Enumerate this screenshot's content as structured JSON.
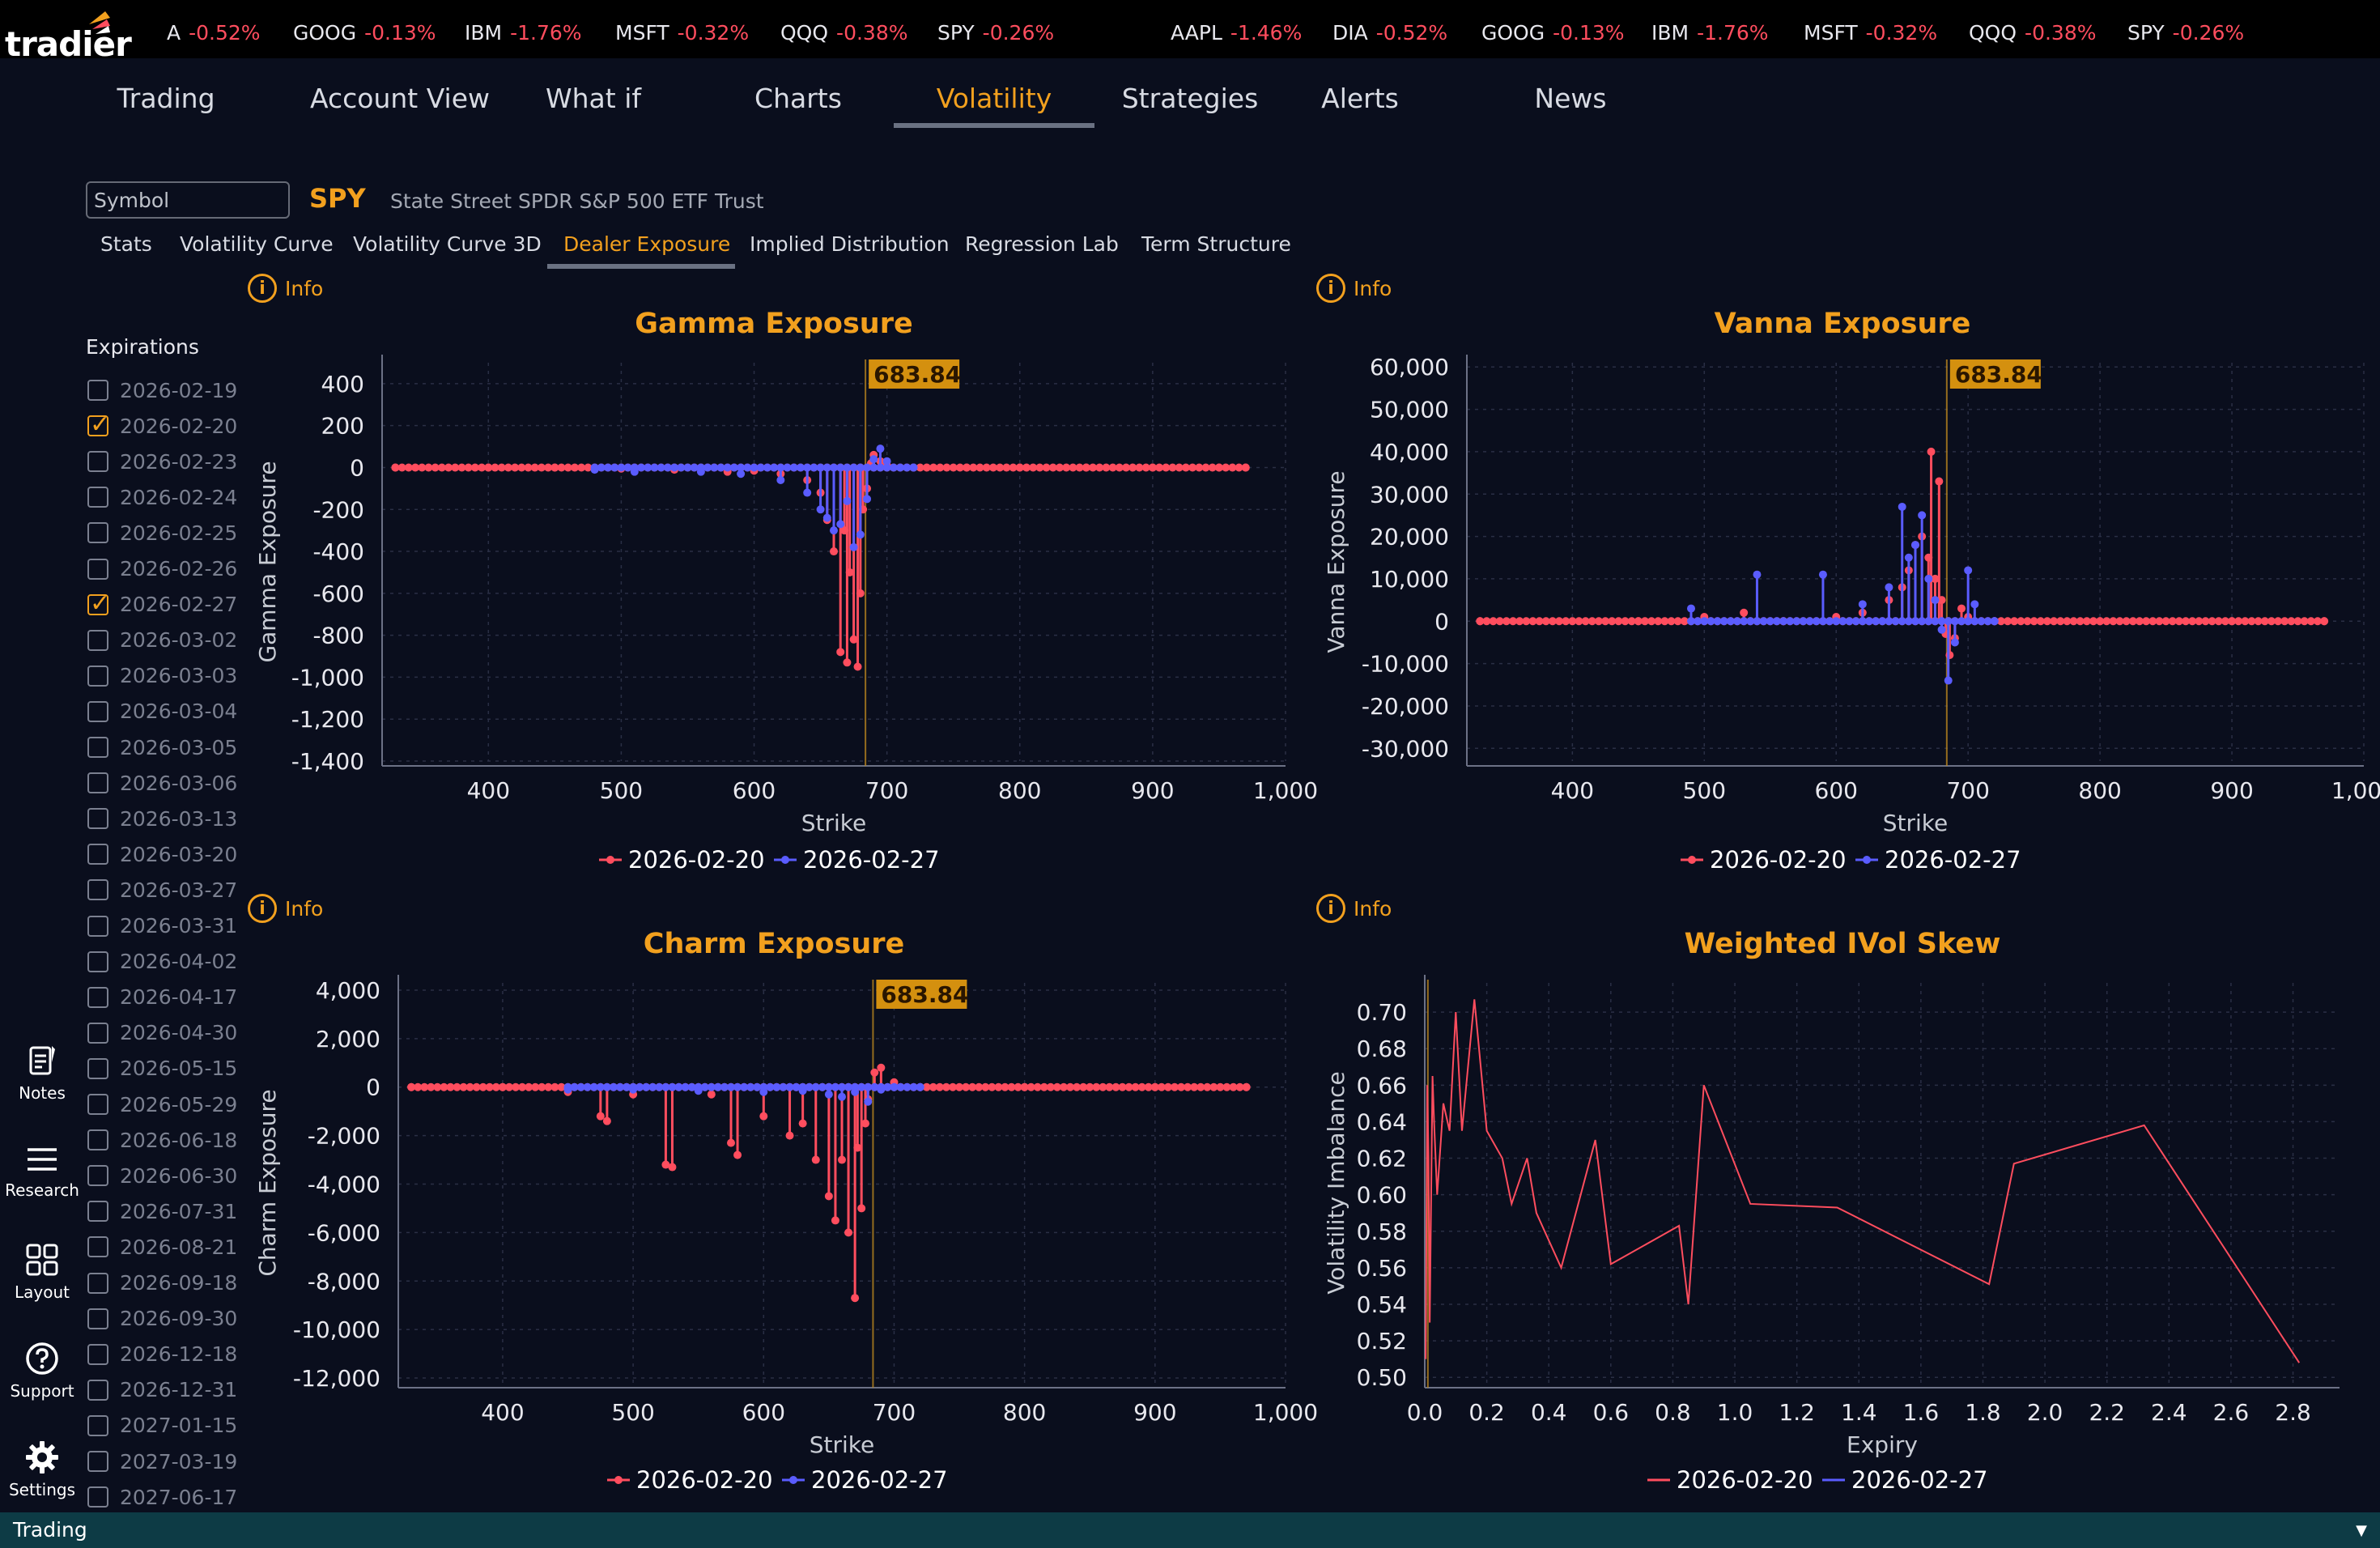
{
  "brand": {
    "logo_text": "tradier"
  },
  "tickers": [
    {
      "sym": "A",
      "chg": "-0.52%"
    },
    {
      "sym": "GOOG",
      "chg": "-0.13%"
    },
    {
      "sym": "IBM",
      "chg": "-1.76%"
    },
    {
      "sym": "MSFT",
      "chg": "-0.32%"
    },
    {
      "sym": "QQQ",
      "chg": "-0.38%"
    },
    {
      "sym": "SPY",
      "chg": "-0.26%"
    },
    {
      "sym": "AAPL",
      "chg": "-1.46%"
    },
    {
      "sym": "DIA",
      "chg": "-0.52%"
    },
    {
      "sym": "GOOG",
      "chg": "-0.13%"
    },
    {
      "sym": "IBM",
      "chg": "-1.76%"
    },
    {
      "sym": "MSFT",
      "chg": "-0.32%"
    },
    {
      "sym": "QQQ",
      "chg": "-0.38%"
    },
    {
      "sym": "SPY",
      "chg": "-0.26%"
    }
  ],
  "main_nav": [
    "Trading",
    "Account View",
    "What if",
    "Charts",
    "Volatility",
    "Strategies",
    "Alerts",
    "News"
  ],
  "main_nav_active": "Volatility",
  "symbol": {
    "placeholder": "Symbol",
    "ticker": "SPY",
    "name": "State Street SPDR S&P 500 ETF Trust"
  },
  "sub_nav": [
    "Stats",
    "Volatility Curve",
    "Volatility Curve 3D",
    "Dealer Exposure",
    "Implied Distribution",
    "Regression Lab",
    "Term Structure"
  ],
  "sub_nav_active": "Dealer Exposure",
  "expirations": {
    "title": "Expirations",
    "items": [
      {
        "date": "2026-02-19",
        "checked": false
      },
      {
        "date": "2026-02-20",
        "checked": true
      },
      {
        "date": "2026-02-23",
        "checked": false
      },
      {
        "date": "2026-02-24",
        "checked": false
      },
      {
        "date": "2026-02-25",
        "checked": false
      },
      {
        "date": "2026-02-26",
        "checked": false
      },
      {
        "date": "2026-02-27",
        "checked": true
      },
      {
        "date": "2026-03-02",
        "checked": false
      },
      {
        "date": "2026-03-03",
        "checked": false
      },
      {
        "date": "2026-03-04",
        "checked": false
      },
      {
        "date": "2026-03-05",
        "checked": false
      },
      {
        "date": "2026-03-06",
        "checked": false
      },
      {
        "date": "2026-03-13",
        "checked": false
      },
      {
        "date": "2026-03-20",
        "checked": false
      },
      {
        "date": "2026-03-27",
        "checked": false
      },
      {
        "date": "2026-03-31",
        "checked": false
      },
      {
        "date": "2026-04-02",
        "checked": false
      },
      {
        "date": "2026-04-17",
        "checked": false
      },
      {
        "date": "2026-04-30",
        "checked": false
      },
      {
        "date": "2026-05-15",
        "checked": false
      },
      {
        "date": "2026-05-29",
        "checked": false
      },
      {
        "date": "2026-06-18",
        "checked": false
      },
      {
        "date": "2026-06-30",
        "checked": false
      },
      {
        "date": "2026-07-31",
        "checked": false
      },
      {
        "date": "2026-08-21",
        "checked": false
      },
      {
        "date": "2026-09-18",
        "checked": false
      },
      {
        "date": "2026-09-30",
        "checked": false
      },
      {
        "date": "2026-12-18",
        "checked": false
      },
      {
        "date": "2026-12-31",
        "checked": false
      },
      {
        "date": "2027-01-15",
        "checked": false
      },
      {
        "date": "2027-03-19",
        "checked": false
      },
      {
        "date": "2027-06-17",
        "checked": false
      }
    ]
  },
  "left_bar": [
    {
      "label": "Notes",
      "icon": "notes-icon"
    },
    {
      "label": "Research",
      "icon": "menu-icon"
    },
    {
      "label": "Layout",
      "icon": "grid-icon"
    },
    {
      "label": "Support",
      "icon": "help-icon"
    },
    {
      "label": "Settings",
      "icon": "gear-icon"
    }
  ],
  "info_label": "Info",
  "colors": {
    "accent": "#f2a01e",
    "series_red": "#ff4d5e",
    "series_blue": "#5a5cff",
    "grid": "#2a2f45"
  },
  "status_bar": {
    "label": "Trading"
  },
  "chart_data": [
    {
      "type": "scatter",
      "title": "Gamma Exposure",
      "xlabel": "Strike",
      "ylabel": "Gamma Exposure",
      "xlim": [
        320,
        1000
      ],
      "ylim": [
        -1400,
        500
      ],
      "xticks": [
        400,
        500,
        600,
        700,
        800,
        900,
        1000
      ],
      "xtick_labels": [
        "400",
        "500",
        "600",
        "700",
        "800",
        "900",
        "1,000"
      ],
      "yticks": [
        400,
        200,
        0,
        -200,
        -400,
        -600,
        -800,
        -1000,
        -1200,
        -1400
      ],
      "ytick_labels": [
        "400",
        "200",
        "0",
        "-200",
        "-400",
        "-600",
        "-800",
        "-1,000",
        "-1,200",
        "-1,400"
      ],
      "spot": 683.84,
      "spot_label": "683.84",
      "series": [
        {
          "name": "2026-02-20",
          "color": "#ff4d5e",
          "x": [
            330,
            400,
            450,
            500,
            540,
            580,
            600,
            620,
            640,
            650,
            655,
            660,
            665,
            668,
            670,
            672,
            675,
            678,
            680,
            682,
            685,
            688,
            690,
            695,
            700,
            720,
            760,
            800,
            850,
            900,
            950,
            970
          ],
          "y": [
            0,
            0,
            0,
            -5,
            -10,
            -20,
            -15,
            -30,
            -60,
            -120,
            -250,
            -400,
            -880,
            -300,
            -930,
            -500,
            -820,
            -950,
            -600,
            -200,
            -100,
            20,
            60,
            30,
            10,
            0,
            0,
            0,
            0,
            0,
            0,
            0
          ]
        },
        {
          "name": "2026-02-27",
          "color": "#5a5cff",
          "x": [
            480,
            510,
            560,
            590,
            620,
            640,
            650,
            655,
            660,
            665,
            670,
            675,
            680,
            685,
            690,
            695,
            700,
            720
          ],
          "y": [
            -10,
            -20,
            -20,
            -30,
            -60,
            -120,
            -200,
            -240,
            -300,
            -270,
            -160,
            -380,
            -320,
            -150,
            40,
            90,
            30,
            0
          ]
        }
      ]
    },
    {
      "type": "scatter",
      "title": "Vanna Exposure",
      "xlabel": "Strike",
      "ylabel": "Vanna Exposure",
      "xlim": [
        320,
        1000
      ],
      "ylim": [
        -33000,
        61000
      ],
      "xticks": [
        400,
        500,
        600,
        700,
        800,
        900,
        1000
      ],
      "xtick_labels": [
        "400",
        "500",
        "600",
        "700",
        "800",
        "900",
        "1,000"
      ],
      "yticks": [
        60000,
        50000,
        40000,
        30000,
        20000,
        10000,
        0,
        -10000,
        -20000,
        -30000
      ],
      "ytick_labels": [
        "60,000",
        "50,000",
        "40,000",
        "30,000",
        "20,000",
        "10,000",
        "0",
        "-10,000",
        "-20,000",
        "-30,000"
      ],
      "spot": 683.84,
      "spot_label": "683.84",
      "series": [
        {
          "name": "2026-02-20",
          "color": "#ff4d5e",
          "x": [
            330,
            450,
            500,
            530,
            560,
            600,
            620,
            640,
            650,
            655,
            660,
            665,
            670,
            672,
            675,
            678,
            680,
            683,
            686,
            690,
            695,
            700,
            720,
            800,
            900,
            970
          ],
          "y": [
            0,
            0,
            1000,
            2000,
            0,
            1000,
            2000,
            5000,
            8000,
            12000,
            18000,
            20000,
            15000,
            40000,
            10000,
            33000,
            5000,
            -3000,
            -8000,
            -4000,
            3000,
            1000,
            0,
            0,
            0,
            0
          ]
        },
        {
          "name": "2026-02-27",
          "color": "#5a5cff",
          "x": [
            490,
            540,
            590,
            620,
            640,
            650,
            655,
            660,
            665,
            670,
            675,
            680,
            685,
            690,
            700,
            705,
            720
          ],
          "y": [
            3000,
            11000,
            11000,
            4000,
            8000,
            27000,
            15000,
            18000,
            25000,
            10000,
            5000,
            -2000,
            -14000,
            -5000,
            12000,
            4000,
            0
          ]
        }
      ]
    },
    {
      "type": "scatter",
      "title": "Charm Exposure",
      "xlabel": "Strike",
      "ylabel": "Charm Exposure",
      "xlim": [
        320,
        1000
      ],
      "ylim": [
        -12200,
        4300
      ],
      "xticks": [
        400,
        500,
        600,
        700,
        800,
        900,
        1000
      ],
      "xtick_labels": [
        "400",
        "500",
        "600",
        "700",
        "800",
        "900",
        "1,000"
      ],
      "yticks": [
        4000,
        2000,
        0,
        -2000,
        -4000,
        -6000,
        -8000,
        -10000,
        -12000
      ],
      "ytick_labels": [
        "4,000",
        "2,000",
        "0",
        "-2,000",
        "-4,000",
        "-6,000",
        "-8,000",
        "-10,000",
        "-12,000"
      ],
      "spot": 683.84,
      "spot_label": "683.84",
      "series": [
        {
          "name": "2026-02-20",
          "color": "#ff4d5e",
          "x": [
            330,
            400,
            450,
            475,
            480,
            500,
            525,
            530,
            560,
            575,
            580,
            600,
            620,
            630,
            640,
            650,
            655,
            660,
            665,
            670,
            672,
            675,
            678,
            680,
            685,
            690,
            700,
            720,
            800,
            900,
            970
          ],
          "y": [
            0,
            0,
            -200,
            -1200,
            -1400,
            -300,
            -3200,
            -3300,
            -300,
            -2300,
            -2800,
            -1200,
            -2000,
            -1500,
            -3000,
            -4500,
            -5500,
            -3000,
            -6000,
            -8700,
            -2500,
            -5000,
            -1500,
            -500,
            600,
            800,
            200,
            0,
            0,
            0,
            0
          ]
        },
        {
          "name": "2026-02-27",
          "color": "#5a5cff",
          "x": [
            450,
            500,
            550,
            600,
            630,
            650,
            660,
            670,
            680,
            690,
            700,
            720
          ],
          "y": [
            -100,
            -100,
            -150,
            -200,
            -150,
            -300,
            -400,
            -200,
            -600,
            -100,
            0,
            0
          ]
        }
      ]
    },
    {
      "type": "line",
      "title": "Weighted IVol Skew",
      "xlabel": "Expiry",
      "ylabel": "Volatility Imbalance",
      "xlim": [
        0,
        2.95
      ],
      "ylim": [
        0.497,
        0.716
      ],
      "xticks": [
        0,
        0.2,
        0.4,
        0.6,
        0.8,
        1.0,
        1.2,
        1.4,
        1.6,
        1.8,
        2.0,
        2.2,
        2.4,
        2.6,
        2.8
      ],
      "xtick_labels": [
        "0.0",
        "0.2",
        "0.4",
        "0.6",
        "0.8",
        "1.0",
        "1.2",
        "1.4",
        "1.6",
        "1.8",
        "2.0",
        "2.2",
        "2.4",
        "2.6",
        "2.8"
      ],
      "yticks": [
        0.7,
        0.68,
        0.66,
        0.64,
        0.62,
        0.6,
        0.58,
        0.56,
        0.54,
        0.52,
        0.5
      ],
      "ytick_labels": [
        "0.70",
        "0.68",
        "0.66",
        "0.64",
        "0.62",
        "0.60",
        "0.58",
        "0.56",
        "0.54",
        "0.52",
        "0.50"
      ],
      "spot": 0.01,
      "series": [
        {
          "name": "2026-02-20",
          "color": "#ff4d5e",
          "x": [
            0.003,
            0.008,
            0.012,
            0.016,
            0.02,
            0.025,
            0.03,
            0.04,
            0.06,
            0.08,
            0.1,
            0.12,
            0.16,
            0.2,
            0.25,
            0.28,
            0.33,
            0.36,
            0.44,
            0.55,
            0.6,
            0.82,
            0.85,
            0.9,
            1.05,
            1.33,
            1.82,
            1.9,
            2.32,
            2.82
          ],
          "y": [
            0.51,
            0.66,
            0.62,
            0.53,
            0.59,
            0.665,
            0.64,
            0.6,
            0.65,
            0.635,
            0.7,
            0.635,
            0.707,
            0.635,
            0.62,
            0.595,
            0.62,
            0.59,
            0.56,
            0.63,
            0.562,
            0.583,
            0.54,
            0.66,
            0.595,
            0.593,
            0.551,
            0.617,
            0.638,
            0.508
          ]
        },
        {
          "name": "2026-02-27",
          "color": "#5a5cff",
          "x": [],
          "y": []
        }
      ]
    }
  ]
}
